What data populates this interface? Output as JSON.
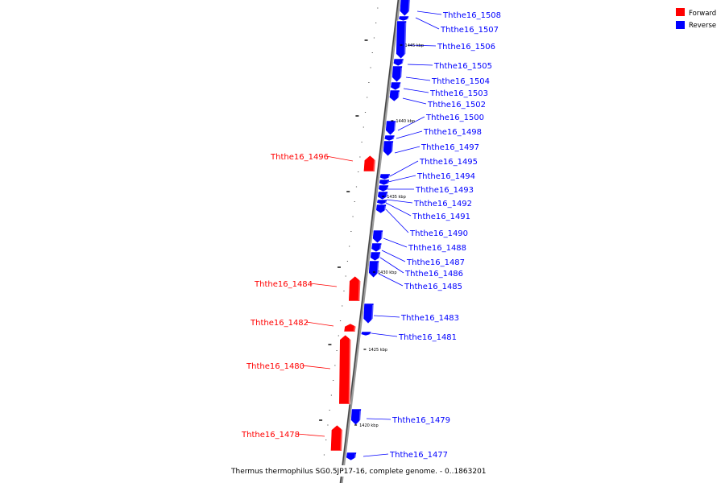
{
  "legend": [
    {
      "label": "Forward",
      "color": "#ff0000"
    },
    {
      "label": "Reverse",
      "color": "#0000ff"
    }
  ],
  "caption": "Thermus thermophilus SG0.5JP17-16, complete genome. - 0..1863201",
  "ticks": [
    {
      "label": "1445 kbp",
      "kbp": 1445
    },
    {
      "label": "1440 kbp",
      "kbp": 1440
    },
    {
      "label": "1435 kbp",
      "kbp": 1435
    },
    {
      "label": "1430 kbp",
      "kbp": 1430
    },
    {
      "label": "1425 kbp",
      "kbp": 1425
    },
    {
      "label": "1420 kbp",
      "kbp": 1420
    }
  ],
  "genes": [
    {
      "name": "Ththe16_1508",
      "strand": "reverse"
    },
    {
      "name": "Ththe16_1507",
      "strand": "reverse"
    },
    {
      "name": "Ththe16_1506",
      "strand": "reverse"
    },
    {
      "name": "Ththe16_1505",
      "strand": "reverse"
    },
    {
      "name": "Ththe16_1504",
      "strand": "reverse"
    },
    {
      "name": "Ththe16_1503",
      "strand": "reverse"
    },
    {
      "name": "Ththe16_1502",
      "strand": "reverse"
    },
    {
      "name": "Ththe16_1500",
      "strand": "reverse"
    },
    {
      "name": "Ththe16_1498",
      "strand": "reverse"
    },
    {
      "name": "Ththe16_1497",
      "strand": "reverse"
    },
    {
      "name": "Ththe16_1496",
      "strand": "forward"
    },
    {
      "name": "Ththe16_1495",
      "strand": "reverse"
    },
    {
      "name": "Ththe16_1494",
      "strand": "reverse"
    },
    {
      "name": "Ththe16_1493",
      "strand": "reverse"
    },
    {
      "name": "Ththe16_1492",
      "strand": "reverse"
    },
    {
      "name": "Ththe16_1491",
      "strand": "reverse"
    },
    {
      "name": "Ththe16_1490",
      "strand": "reverse"
    },
    {
      "name": "Ththe16_1488",
      "strand": "reverse"
    },
    {
      "name": "Ththe16_1487",
      "strand": "reverse"
    },
    {
      "name": "Ththe16_1486",
      "strand": "reverse"
    },
    {
      "name": "Ththe16_1485",
      "strand": "reverse"
    },
    {
      "name": "Ththe16_1484",
      "strand": "forward"
    },
    {
      "name": "Ththe16_1483",
      "strand": "reverse"
    },
    {
      "name": "Ththe16_1482",
      "strand": "forward"
    },
    {
      "name": "Ththe16_1481",
      "strand": "reverse"
    },
    {
      "name": "Ththe16_1480",
      "strand": "forward"
    },
    {
      "name": "Ththe16_1479",
      "strand": "reverse"
    },
    {
      "name": "Ththe16_1478",
      "strand": "forward"
    },
    {
      "name": "Ththe16_1477",
      "strand": "reverse"
    }
  ]
}
